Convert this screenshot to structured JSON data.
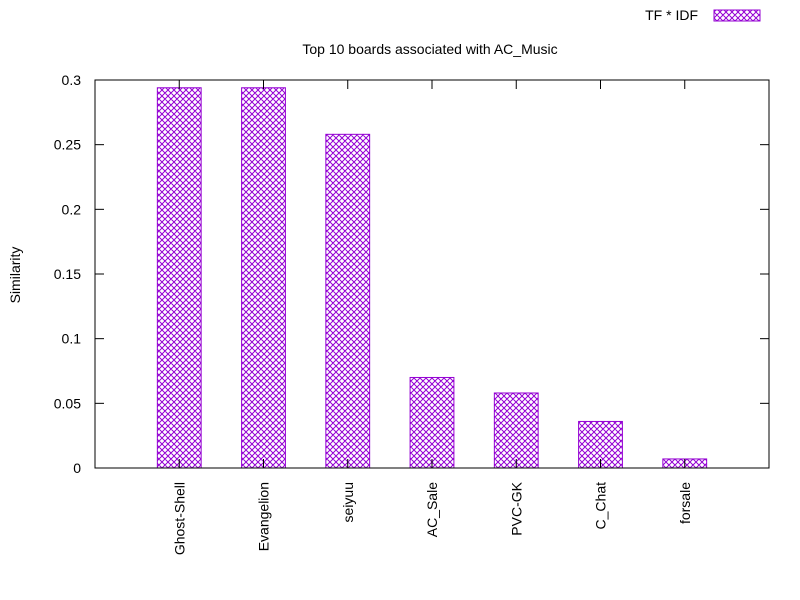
{
  "chart_data": {
    "type": "bar",
    "title": "Top 10 boards associated with AC_Music",
    "xlabel": "",
    "ylabel": "Similarity",
    "categories": [
      "Ghost-Shell",
      "Evangelion",
      "seiyuu",
      "AC_Sale",
      "PVC-GK",
      "C_Chat",
      "forsale"
    ],
    "series": [
      {
        "name": "TF * IDF",
        "values": [
          0.294,
          0.294,
          0.258,
          0.07,
          0.058,
          0.036,
          0.007
        ]
      }
    ],
    "ylim": [
      0,
      0.3
    ],
    "yticks": [
      0,
      0.05,
      0.1,
      0.15,
      0.2,
      0.25,
      0.3
    ],
    "ytick_labels": [
      "0",
      "0.05",
      "0.1",
      "0.15",
      "0.2",
      "0.25",
      "0.3"
    ],
    "grid": false,
    "legend_position": "top-right",
    "bar_color": "#9400d3",
    "bar_pattern": "crosshatch"
  }
}
